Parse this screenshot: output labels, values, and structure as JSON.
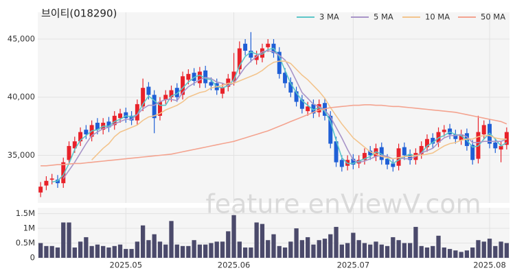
{
  "watermark": "feature.enViewV.com",
  "chart_data": [
    {
      "type": "candlestick",
      "title": "브이티(018290)",
      "up_color": "#e8222a",
      "down_color": "#1f5fd6",
      "grid": true,
      "ylim": [
        30900,
        47300
      ],
      "yticks": [
        {
          "value": 35000,
          "label": "35,000"
        },
        {
          "value": 40000,
          "label": "40,000"
        },
        {
          "value": 45000,
          "label": "45,000"
        }
      ],
      "open": [
        31800,
        32400,
        32900,
        32900,
        32600,
        34600,
        35600,
        36200,
        37200,
        36600,
        37800,
        37200,
        37900,
        37600,
        38200,
        38700,
        38400,
        38000,
        39200,
        40900,
        40200,
        38400,
        39800,
        40000,
        40800,
        40200,
        41500,
        42100,
        41200,
        42300,
        41300,
        41200,
        40300,
        40900,
        41400,
        42400,
        44600,
        44000,
        43200,
        43400,
        44300,
        44600,
        43900,
        42100,
        41300,
        40500,
        39800,
        38800,
        39400,
        38700,
        39500,
        38400,
        36200,
        34600,
        34100,
        34700,
        34300,
        34600,
        35400,
        34900,
        35700,
        34700,
        34300,
        34100,
        35700,
        35100,
        34600,
        35100,
        35700,
        36500,
        36100,
        37000,
        37300,
        36800,
        36300,
        36900,
        35900,
        34700,
        36800,
        37700,
        36100,
        35500,
        35900
      ],
      "high": [
        32700,
        33200,
        33400,
        33300,
        34800,
        36200,
        36600,
        37400,
        37600,
        38000,
        38200,
        38200,
        38300,
        38800,
        39000,
        39100,
        38800,
        39800,
        41600,
        41300,
        40600,
        40000,
        40600,
        41000,
        41200,
        42200,
        42400,
        42500,
        42600,
        42700,
        41700,
        41600,
        41200,
        42000,
        43800,
        44800,
        45000,
        45600,
        44000,
        44600,
        45000,
        45000,
        44300,
        42500,
        41700,
        40900,
        40200,
        39600,
        39800,
        39800,
        39900,
        38800,
        36600,
        35000,
        35000,
        35100,
        35000,
        35600,
        35800,
        36000,
        36100,
        35100,
        34700,
        36000,
        36100,
        35500,
        35600,
        36200,
        36800,
        36900,
        37400,
        37600,
        37700,
        37200,
        37200,
        37300,
        36300,
        38400,
        38000,
        38100,
        36500,
        36200,
        37400
      ],
      "low": [
        31400,
        32000,
        32500,
        32200,
        32200,
        34200,
        35200,
        35800,
        36400,
        36200,
        36800,
        36800,
        37000,
        37200,
        37800,
        37800,
        37600,
        37600,
        38800,
        39800,
        36900,
        38000,
        39400,
        39600,
        39600,
        39800,
        41100,
        41000,
        40800,
        40800,
        40600,
        40200,
        39900,
        40500,
        41000,
        42000,
        43600,
        43000,
        42800,
        43000,
        43900,
        43400,
        41600,
        40800,
        40000,
        39200,
        38600,
        38400,
        38200,
        38300,
        38000,
        35600,
        34000,
        33600,
        33700,
        33800,
        33900,
        34200,
        34600,
        34500,
        34200,
        33800,
        33600,
        33700,
        34600,
        34200,
        34200,
        34700,
        35300,
        35600,
        35700,
        36600,
        36400,
        36000,
        35900,
        35400,
        34200,
        34300,
        36400,
        35600,
        35200,
        34400,
        35500
      ],
      "close": [
        32300,
        32800,
        33000,
        32600,
        34400,
        35800,
        36200,
        37000,
        36800,
        37600,
        37200,
        37800,
        37400,
        38400,
        38600,
        38200,
        38000,
        39400,
        40800,
        40200,
        38200,
        39600,
        40200,
        40600,
        40000,
        41800,
        42000,
        41400,
        42200,
        41200,
        41000,
        40600,
        40800,
        41600,
        42200,
        44200,
        44000,
        43400,
        43600,
        44200,
        44600,
        43800,
        42000,
        41200,
        40400,
        39600,
        39000,
        39200,
        38600,
        39400,
        38400,
        36000,
        34400,
        34000,
        34600,
        34200,
        34600,
        35200,
        35000,
        35600,
        34600,
        34200,
        34000,
        35600,
        35000,
        34600,
        35200,
        35800,
        36400,
        36000,
        37000,
        37200,
        36800,
        36400,
        36800,
        35800,
        34600,
        37000,
        37600,
        36000,
        35600,
        35800,
        37000
      ],
      "series": [
        {
          "name": "3 MA",
          "color": "#5cc6c8",
          "values": [
            null,
            null,
            32700,
            32800,
            33300,
            34300,
            35500,
            36300,
            36700,
            37100,
            37200,
            37500,
            37500,
            37900,
            38100,
            38400,
            38300,
            38500,
            39400,
            40100,
            39700,
            39300,
            39300,
            40100,
            40300,
            40800,
            41300,
            41700,
            41900,
            41600,
            41500,
            40900,
            40800,
            41000,
            41500,
            42700,
            43500,
            43900,
            43700,
            43700,
            44100,
            44200,
            43500,
            42300,
            41200,
            40400,
            39700,
            39300,
            38900,
            39100,
            38800,
            37900,
            36300,
            34800,
            34300,
            34300,
            34500,
            34700,
            34900,
            35300,
            35100,
            34800,
            34300,
            34600,
            34900,
            35100,
            34900,
            35200,
            35800,
            36100,
            36500,
            36700,
            37000,
            36800,
            36700,
            36300,
            35700,
            35800,
            36400,
            36900,
            36400,
            35800,
            36100
          ]
        },
        {
          "name": "5 MA",
          "color": "#a894c8",
          "values": [
            null,
            null,
            null,
            null,
            33000,
            33700,
            34400,
            35200,
            36000,
            36700,
            37000,
            37300,
            37400,
            37700,
            37900,
            38100,
            38100,
            38500,
            39000,
            39300,
            39300,
            39600,
            39800,
            39800,
            39700,
            40400,
            40900,
            41200,
            41500,
            41700,
            41600,
            41300,
            41200,
            41000,
            41200,
            41900,
            42600,
            43100,
            43500,
            43900,
            44000,
            43900,
            43600,
            43200,
            42400,
            41400,
            40400,
            39900,
            39400,
            39200,
            38900,
            38300,
            37400,
            36500,
            35500,
            34600,
            34400,
            34500,
            34700,
            34900,
            35000,
            34900,
            34700,
            34800,
            34700,
            34700,
            34900,
            35200,
            35400,
            35600,
            36100,
            36500,
            36700,
            36700,
            36800,
            36600,
            36100,
            36100,
            36200,
            36200,
            36200,
            36200,
            36400
          ]
        },
        {
          "name": "10 MA",
          "color": "#f3c48c",
          "values": [
            null,
            null,
            null,
            null,
            null,
            null,
            null,
            null,
            null,
            34600,
            35100,
            35600,
            36000,
            36600,
            37000,
            37200,
            37400,
            37600,
            38000,
            38300,
            38400,
            38600,
            38900,
            39100,
            39300,
            39600,
            40000,
            40200,
            40400,
            40500,
            40800,
            40900,
            41000,
            41200,
            41200,
            41400,
            41600,
            41800,
            42000,
            42300,
            42700,
            43000,
            43100,
            43100,
            42900,
            42400,
            41900,
            41500,
            41000,
            40500,
            39900,
            39100,
            38400,
            37700,
            37100,
            36500,
            36100,
            35700,
            35300,
            35100,
            34900,
            34800,
            34700,
            34800,
            34900,
            34900,
            35000,
            35000,
            35100,
            35200,
            35500,
            35800,
            36000,
            36100,
            36300,
            36400,
            36400,
            36600,
            36700,
            36700,
            36500,
            36400,
            36400
          ]
        },
        {
          "name": "50 MA",
          "color": "#f4a38f",
          "values": [
            34100,
            34100,
            34150,
            34200,
            34200,
            34250,
            34300,
            34300,
            34350,
            34400,
            34450,
            34500,
            34550,
            34600,
            34650,
            34700,
            34750,
            34800,
            34850,
            34900,
            34950,
            35000,
            35050,
            35100,
            35200,
            35300,
            35400,
            35500,
            35600,
            35700,
            35800,
            35900,
            36000,
            36100,
            36200,
            36350,
            36500,
            36650,
            36800,
            36950,
            37100,
            37300,
            37500,
            37700,
            37900,
            38100,
            38300,
            38500,
            38700,
            38900,
            39000,
            39100,
            39150,
            39200,
            39250,
            39300,
            39300,
            39350,
            39350,
            39300,
            39300,
            39250,
            39200,
            39200,
            39150,
            39100,
            39050,
            39000,
            38950,
            38900,
            38850,
            38800,
            38750,
            38700,
            38600,
            38500,
            38400,
            38300,
            38200,
            38100,
            38000,
            37900,
            37700
          ]
        }
      ]
    },
    {
      "type": "bar",
      "color": "#4b4a6b",
      "grid": true,
      "ylim": [
        0,
        1700000
      ],
      "yticks": [
        0,
        {
          "value": 500000,
          "label": "0.5M"
        },
        {
          "value": 1000000,
          "label": "1M"
        },
        {
          "value": 1500000,
          "label": "1.5M"
        }
      ],
      "xticks": [
        {
          "value": 15,
          "label": "2025.05"
        },
        {
          "value": 34,
          "label": "2025.06"
        },
        {
          "value": 55,
          "label": "2025.07"
        },
        {
          "value": 79,
          "label": "2025.08"
        }
      ],
      "values": [
        500000,
        400000,
        400000,
        350000,
        1200000,
        1200000,
        350000,
        550000,
        700000,
        400000,
        450000,
        400000,
        350000,
        400000,
        450000,
        300000,
        300000,
        550000,
        1100000,
        600000,
        800000,
        550000,
        450000,
        1250000,
        450000,
        400000,
        400000,
        600000,
        450000,
        450000,
        500000,
        550000,
        550000,
        900000,
        1450000,
        550000,
        350000,
        350000,
        1200000,
        1150000,
        600000,
        800000,
        400000,
        350000,
        550000,
        1000000,
        600000,
        700000,
        450000,
        600000,
        650000,
        800000,
        1050000,
        450000,
        500000,
        850000,
        600000,
        500000,
        450000,
        550000,
        450000,
        400000,
        700000,
        600000,
        500000,
        500000,
        1050000,
        400000,
        350000,
        400000,
        750000,
        350000,
        300000,
        250000,
        200000,
        250000,
        350000,
        600000,
        550000,
        650000,
        400000,
        550000,
        500000
      ]
    }
  ]
}
